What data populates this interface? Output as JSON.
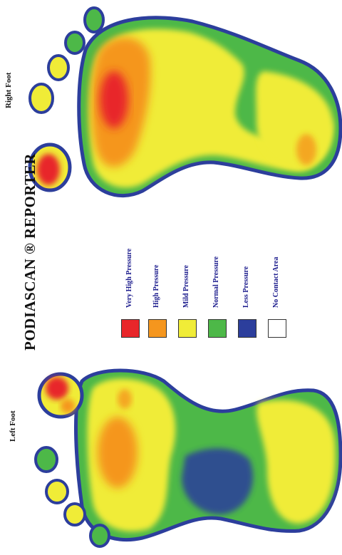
{
  "title": "PODIASCAN ® REPORTER",
  "feet": {
    "right_label": "Right Foot",
    "left_label": "Left Foot"
  },
  "legend": [
    {
      "label": "Very High Pressure",
      "color": "#e8262a"
    },
    {
      "label": "High Pressure",
      "color": "#f5961e"
    },
    {
      "label": "Mild Pressure",
      "color": "#f0ec37"
    },
    {
      "label": "Normal Pressure",
      "color": "#4db848"
    },
    {
      "label": "Less Pressure",
      "color": "#2c3e9c"
    },
    {
      "label": "No Contact Area",
      "color": "#ffffff"
    }
  ],
  "colors": {
    "outline": "#2c3e9c",
    "normal": "#4db848",
    "mild": "#f0ec37",
    "high": "#f5961e",
    "very_high": "#e8262a"
  }
}
